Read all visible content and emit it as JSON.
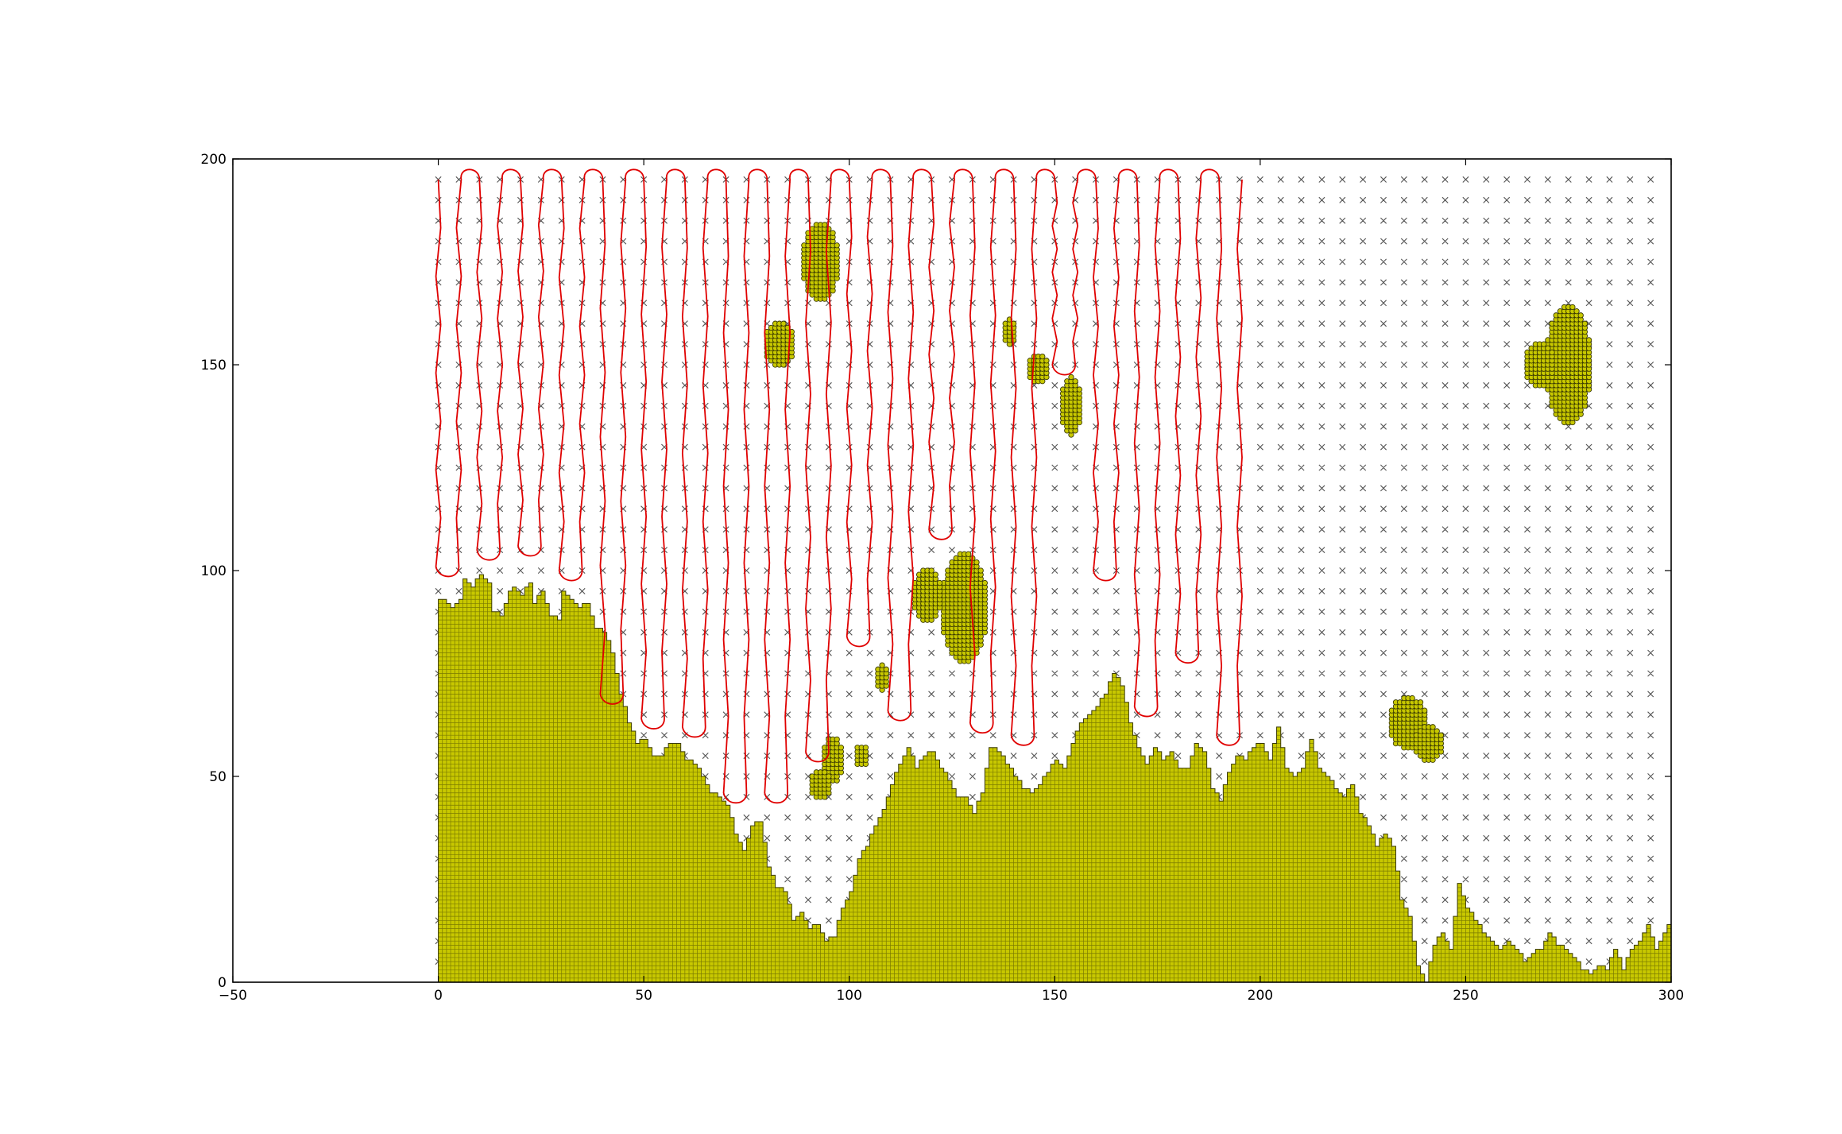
{
  "chart_data": {
    "type": "scatter",
    "title": "",
    "xlabel": "",
    "ylabel": "",
    "xlim": [
      -50,
      300
    ],
    "ylim": [
      0,
      200
    ],
    "grid": false,
    "legend": "none",
    "x_ticks": [
      -50,
      0,
      50,
      100,
      150,
      200,
      250,
      300
    ],
    "y_ticks": [
      0,
      50,
      100,
      150,
      200
    ],
    "x_tick_labels": [
      "−50",
      "0",
      "50",
      "100",
      "150",
      "200",
      "250",
      "300"
    ],
    "y_tick_labels": [
      "0",
      "50",
      "100",
      "150",
      "200"
    ],
    "colors": {
      "obstacle_fill": "#c8c800",
      "obstacle_edge": "#3a3a00",
      "path": "#e00000",
      "grid_mark": "#555555"
    },
    "grid_marks": {
      "marker": "x",
      "x_start": 0,
      "x_end": 295,
      "x_step": 5,
      "y_start": 5,
      "y_end": 195,
      "y_step": 5
    },
    "terrain": {
      "marker": "o",
      "cell": 1,
      "heights": [
        [
          0,
          93
        ],
        [
          2,
          92
        ],
        [
          3,
          91
        ],
        [
          5,
          93
        ],
        [
          6,
          98
        ],
        [
          8,
          96
        ],
        [
          10,
          99
        ],
        [
          12,
          97
        ],
        [
          13,
          90
        ],
        [
          15,
          89
        ],
        [
          17,
          95
        ],
        [
          18,
          96
        ],
        [
          20,
          94
        ],
        [
          22,
          97
        ],
        [
          23,
          92
        ],
        [
          25,
          95
        ],
        [
          27,
          89
        ],
        [
          29,
          88
        ],
        [
          30,
          95
        ],
        [
          32,
          93
        ],
        [
          34,
          91
        ],
        [
          36,
          92
        ],
        [
          38,
          86
        ],
        [
          40,
          85
        ],
        [
          42,
          80
        ],
        [
          44,
          70
        ],
        [
          46,
          63
        ],
        [
          48,
          58
        ],
        [
          50,
          59
        ],
        [
          52,
          55
        ],
        [
          54,
          55
        ],
        [
          56,
          58
        ],
        [
          58,
          58
        ],
        [
          60,
          54
        ],
        [
          62,
          53
        ],
        [
          64,
          50
        ],
        [
          66,
          46
        ],
        [
          68,
          45
        ],
        [
          70,
          43
        ],
        [
          72,
          36
        ],
        [
          74,
          32
        ],
        [
          76,
          38
        ],
        [
          78,
          39
        ],
        [
          80,
          28
        ],
        [
          82,
          23
        ],
        [
          84,
          22
        ],
        [
          86,
          15
        ],
        [
          88,
          17
        ],
        [
          90,
          13
        ],
        [
          92,
          14
        ],
        [
          94,
          10
        ],
        [
          96,
          11
        ],
        [
          98,
          18
        ],
        [
          100,
          22
        ],
        [
          102,
          30
        ],
        [
          104,
          33
        ],
        [
          106,
          38
        ],
        [
          108,
          42
        ],
        [
          110,
          48
        ],
        [
          112,
          53
        ],
        [
          114,
          57
        ],
        [
          116,
          52
        ],
        [
          118,
          55
        ],
        [
          120,
          56
        ],
        [
          122,
          52
        ],
        [
          124,
          49
        ],
        [
          126,
          45
        ],
        [
          128,
          45
        ],
        [
          130,
          41
        ],
        [
          132,
          46
        ],
        [
          134,
          57
        ],
        [
          136,
          56
        ],
        [
          138,
          53
        ],
        [
          140,
          50
        ],
        [
          142,
          47
        ],
        [
          144,
          46
        ],
        [
          146,
          48
        ],
        [
          148,
          51
        ],
        [
          150,
          54
        ],
        [
          152,
          52
        ],
        [
          154,
          58
        ],
        [
          156,
          63
        ],
        [
          158,
          65
        ],
        [
          160,
          67
        ],
        [
          162,
          70
        ],
        [
          164,
          75
        ],
        [
          166,
          72
        ],
        [
          168,
          63
        ],
        [
          170,
          57
        ],
        [
          172,
          53
        ],
        [
          174,
          57
        ],
        [
          176,
          54
        ],
        [
          178,
          56
        ],
        [
          180,
          52
        ],
        [
          182,
          52
        ],
        [
          184,
          58
        ],
        [
          186,
          56
        ],
        [
          188,
          47
        ],
        [
          190,
          44
        ],
        [
          192,
          51
        ],
        [
          194,
          55
        ],
        [
          196,
          54
        ],
        [
          198,
          57
        ],
        [
          200,
          58
        ],
        [
          202,
          54
        ],
        [
          204,
          62
        ],
        [
          206,
          52
        ],
        [
          208,
          50
        ],
        [
          210,
          52
        ],
        [
          212,
          59
        ],
        [
          214,
          52
        ],
        [
          216,
          50
        ],
        [
          218,
          47
        ],
        [
          220,
          45
        ],
        [
          222,
          48
        ],
        [
          224,
          41
        ],
        [
          226,
          38
        ],
        [
          228,
          33
        ],
        [
          230,
          36
        ],
        [
          232,
          33
        ],
        [
          234,
          20
        ],
        [
          236,
          16
        ],
        [
          238,
          4
        ],
        [
          240,
          0
        ],
        [
          242,
          9
        ],
        [
          244,
          12
        ],
        [
          246,
          8
        ],
        [
          248,
          24
        ],
        [
          250,
          18
        ],
        [
          252,
          15
        ],
        [
          254,
          12
        ],
        [
          256,
          10
        ],
        [
          258,
          8
        ],
        [
          260,
          10
        ],
        [
          262,
          8
        ],
        [
          264,
          5
        ],
        [
          266,
          7
        ],
        [
          268,
          8
        ],
        [
          270,
          12
        ],
        [
          272,
          9
        ],
        [
          274,
          8
        ],
        [
          276,
          6
        ],
        [
          278,
          3
        ],
        [
          280,
          2
        ],
        [
          282,
          4
        ],
        [
          284,
          3
        ],
        [
          286,
          8
        ],
        [
          288,
          3
        ],
        [
          290,
          8
        ],
        [
          292,
          10
        ],
        [
          294,
          14
        ],
        [
          296,
          8
        ],
        [
          298,
          12
        ],
        [
          300,
          16
        ]
      ]
    },
    "blobs": [
      {
        "cx": 93,
        "cy": 175,
        "rx": 4,
        "ry": 9
      },
      {
        "cx": 83,
        "cy": 155,
        "rx": 3,
        "ry": 5
      },
      {
        "cx": 128,
        "cy": 91,
        "rx": 5,
        "ry": 13
      },
      {
        "cx": 119,
        "cy": 94,
        "rx": 3,
        "ry": 6
      },
      {
        "cx": 146,
        "cy": 149,
        "rx": 2,
        "ry": 3
      },
      {
        "cx": 154,
        "cy": 140,
        "rx": 2,
        "ry": 7
      },
      {
        "cx": 139,
        "cy": 158,
        "rx": 1,
        "ry": 3
      },
      {
        "cx": 96,
        "cy": 54,
        "rx": 2,
        "ry": 5
      },
      {
        "cx": 93,
        "cy": 48,
        "rx": 2,
        "ry": 3
      },
      {
        "cx": 108,
        "cy": 74,
        "rx": 1,
        "ry": 3
      },
      {
        "cx": 103,
        "cy": 55,
        "rx": 1,
        "ry": 2
      },
      {
        "cx": 236,
        "cy": 63,
        "rx": 4,
        "ry": 6
      },
      {
        "cx": 241,
        "cy": 58,
        "rx": 3,
        "ry": 4
      },
      {
        "cx": 275,
        "cy": 150,
        "rx": 5,
        "ry": 14
      },
      {
        "cx": 268,
        "cy": 150,
        "rx": 3,
        "ry": 5
      }
    ],
    "path": {
      "stroke": "#e00000",
      "sweeps": [
        [
          0,
          101,
          195
        ],
        [
          5,
          101,
          195
        ],
        [
          10,
          105,
          195
        ],
        [
          15,
          105,
          195
        ],
        [
          20,
          106,
          195
        ],
        [
          25,
          106,
          195
        ],
        [
          30,
          100,
          195
        ],
        [
          35,
          100,
          195
        ],
        [
          40,
          70,
          195
        ],
        [
          45,
          70,
          195
        ],
        [
          50,
          64,
          195
        ],
        [
          55,
          64,
          195
        ],
        [
          60,
          62,
          195
        ],
        [
          65,
          62,
          195
        ],
        [
          70,
          46,
          195
        ],
        [
          75,
          46,
          195
        ],
        [
          80,
          46,
          195
        ],
        [
          85,
          46,
          195
        ],
        [
          90,
          56,
          195
        ],
        [
          95,
          56,
          195
        ],
        [
          100,
          84,
          195
        ],
        [
          105,
          84,
          195
        ],
        [
          110,
          66,
          195
        ],
        [
          115,
          66,
          195
        ],
        [
          120,
          110,
          195
        ],
        [
          125,
          110,
          195
        ],
        [
          130,
          63,
          195
        ],
        [
          135,
          63,
          195
        ],
        [
          140,
          60,
          195
        ],
        [
          145,
          60,
          195
        ],
        [
          150,
          150,
          195
        ],
        [
          155,
          150,
          195
        ],
        [
          160,
          100,
          195
        ],
        [
          165,
          100,
          195
        ],
        [
          170,
          67,
          195
        ],
        [
          175,
          67,
          195
        ],
        [
          180,
          80,
          195
        ],
        [
          185,
          80,
          195
        ],
        [
          190,
          60,
          195
        ],
        [
          195,
          60,
          195
        ]
      ]
    }
  }
}
